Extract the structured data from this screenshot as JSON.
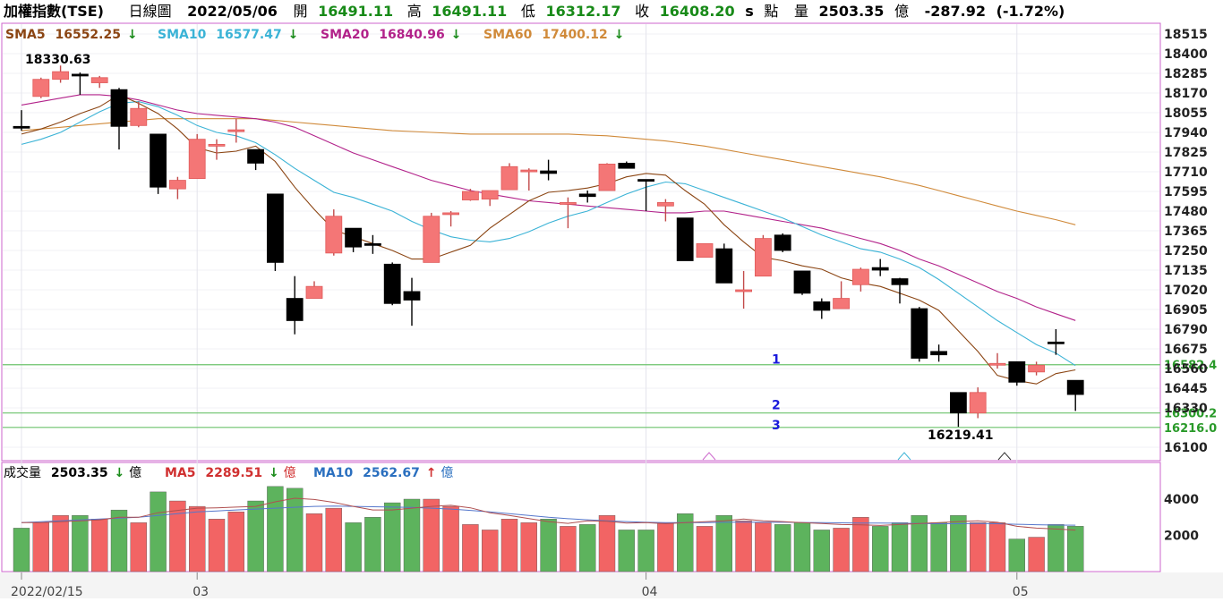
{
  "header": {
    "index_name": "加權指數(TSE)",
    "period": "日線圖",
    "date": "2022/05/06",
    "open_label": "開",
    "open": "16491.11",
    "high_label": "高",
    "high": "16491.11",
    "low_label": "低",
    "low": "16312.17",
    "close_label": "收",
    "close": "16408.20",
    "flag": "s",
    "point_unit": "點",
    "volume_label": "量",
    "volume": "2503.35",
    "volume_unit": "億",
    "change": "-287.92",
    "change_pct": "(-1.72%)"
  },
  "indicators": [
    {
      "label": "SMA5",
      "value": "16552.25",
      "arrow": "↓",
      "color": "#8B4513"
    },
    {
      "label": "SMA10",
      "value": "16577.47",
      "arrow": "↓",
      "color": "#3BB3D6"
    },
    {
      "label": "SMA20",
      "value": "16840.96",
      "arrow": "↓",
      "color": "#B2228A"
    },
    {
      "label": "SMA60",
      "value": "17400.12",
      "arrow": "↓",
      "color": "#D08A3A"
    }
  ],
  "volume_panel": {
    "title": "成交量",
    "value": "2503.35",
    "arrow": "↓",
    "unit": "億",
    "ma5_label": "MA5",
    "ma5": "2289.51",
    "ma5_arrow": "↓",
    "ma5_unit": "億",
    "ma10_label": "MA10",
    "ma10": "2562.67",
    "ma10_arrow": "↑",
    "ma10_unit": "億"
  },
  "annotations": {
    "high_marker": "18330.63",
    "low_marker": "16219.41",
    "lines": [
      {
        "label": "1",
        "value": "16582.4"
      },
      {
        "label": "2",
        "value": "16300.2"
      },
      {
        "label": "3",
        "value": "16216.0"
      }
    ]
  },
  "colors": {
    "up": "#f47676",
    "down": "#000000",
    "vol_up": "#f26464",
    "vol_down": "#5db35d",
    "hline": "#6cc36c",
    "frame": "#cc66cc",
    "ma5": "#8B4513",
    "ma10": "#3BB3D6",
    "ma20": "#B2228A",
    "ma60": "#D08A3A"
  },
  "chart_data": {
    "type": "candlestick",
    "price_ticks": [
      "18515",
      "18400",
      "18285",
      "18170",
      "18055",
      "17940",
      "17825",
      "17710",
      "17595",
      "17480",
      "17365",
      "17250",
      "17135",
      "17020",
      "16905",
      "16790",
      "16675",
      "16560",
      "16445",
      "16330",
      "16100"
    ],
    "volume_ticks": [
      "4000",
      "2000"
    ],
    "date_labels": [
      "2022/02/15",
      "03",
      "04",
      "05"
    ],
    "date_label_index": [
      0,
      9,
      32,
      51
    ],
    "candles": [
      {
        "o": 17975,
        "h": 18070,
        "l": 17950,
        "c": 17965
      },
      {
        "o": 18150,
        "h": 18260,
        "l": 18140,
        "c": 18250
      },
      {
        "o": 18250,
        "h": 18330.63,
        "l": 18230,
        "c": 18295
      },
      {
        "o": 18280,
        "h": 18290,
        "l": 18160,
        "c": 18270
      },
      {
        "o": 18230,
        "h": 18270,
        "l": 18200,
        "c": 18260
      },
      {
        "o": 18190,
        "h": 18200,
        "l": 17840,
        "c": 17975
      },
      {
        "o": 17980,
        "h": 18120,
        "l": 17970,
        "c": 18080
      },
      {
        "o": 17930,
        "h": 17930,
        "l": 17580,
        "c": 17620
      },
      {
        "o": 17610,
        "h": 17680,
        "l": 17550,
        "c": 17660
      },
      {
        "o": 17670,
        "h": 17930,
        "l": 17670,
        "c": 17900
      },
      {
        "o": 17860,
        "h": 17900,
        "l": 17780,
        "c": 17870
      },
      {
        "o": 17950,
        "h": 18020,
        "l": 17880,
        "c": 17955
      },
      {
        "o": 17840,
        "h": 17840,
        "l": 17720,
        "c": 17760
      },
      {
        "o": 17580,
        "h": 17580,
        "l": 17130,
        "c": 17180
      },
      {
        "o": 16970,
        "h": 17100,
        "l": 16760,
        "c": 16840
      },
      {
        "o": 16970,
        "h": 17070,
        "l": 16970,
        "c": 17040
      },
      {
        "o": 17235,
        "h": 17490,
        "l": 17220,
        "c": 17450
      },
      {
        "o": 17380,
        "h": 17380,
        "l": 17240,
        "c": 17270
      },
      {
        "o": 17290,
        "h": 17340,
        "l": 17230,
        "c": 17280
      },
      {
        "o": 17170,
        "h": 17180,
        "l": 16930,
        "c": 16940
      },
      {
        "o": 17010,
        "h": 17090,
        "l": 16810,
        "c": 16960
      },
      {
        "o": 17180,
        "h": 17470,
        "l": 17180,
        "c": 17450
      },
      {
        "o": 17460,
        "h": 17480,
        "l": 17390,
        "c": 17470
      },
      {
        "o": 17545,
        "h": 17610,
        "l": 17540,
        "c": 17595
      },
      {
        "o": 17550,
        "h": 17600,
        "l": 17510,
        "c": 17600
      },
      {
        "o": 17605,
        "h": 17760,
        "l": 17605,
        "c": 17740
      },
      {
        "o": 17720,
        "h": 17730,
        "l": 17600,
        "c": 17720
      },
      {
        "o": 17715,
        "h": 17780,
        "l": 17660,
        "c": 17700
      },
      {
        "o": 17530,
        "h": 17560,
        "l": 17380,
        "c": 17530
      },
      {
        "o": 17580,
        "h": 17600,
        "l": 17530,
        "c": 17565
      },
      {
        "o": 17600,
        "h": 17760,
        "l": 17600,
        "c": 17755
      },
      {
        "o": 17760,
        "h": 17770,
        "l": 17730,
        "c": 17730
      },
      {
        "o": 17665,
        "h": 17665,
        "l": 17480,
        "c": 17655
      },
      {
        "o": 17510,
        "h": 17550,
        "l": 17420,
        "c": 17530
      },
      {
        "o": 17440,
        "h": 17440,
        "l": 17190,
        "c": 17190
      },
      {
        "o": 17210,
        "h": 17290,
        "l": 17210,
        "c": 17290
      },
      {
        "o": 17260,
        "h": 17290,
        "l": 17060,
        "c": 17060
      },
      {
        "o": 17020,
        "h": 17130,
        "l": 16910,
        "c": 17020
      },
      {
        "o": 17100,
        "h": 17340,
        "l": 17100,
        "c": 17320
      },
      {
        "o": 17340,
        "h": 17350,
        "l": 17240,
        "c": 17250
      },
      {
        "o": 17130,
        "h": 17130,
        "l": 16990,
        "c": 17000
      },
      {
        "o": 16950,
        "h": 16970,
        "l": 16850,
        "c": 16900
      },
      {
        "o": 16910,
        "h": 17070,
        "l": 16910,
        "c": 16970
      },
      {
        "o": 17050,
        "h": 17150,
        "l": 17010,
        "c": 17140
      },
      {
        "o": 17150,
        "h": 17200,
        "l": 17100,
        "c": 17135
      },
      {
        "o": 17085,
        "h": 17090,
        "l": 16940,
        "c": 17050
      },
      {
        "o": 16910,
        "h": 16920,
        "l": 16600,
        "c": 16620
      },
      {
        "o": 16660,
        "h": 16700,
        "l": 16600,
        "c": 16640
      },
      {
        "o": 16420,
        "h": 16420,
        "l": 16219.41,
        "c": 16300
      },
      {
        "o": 16300,
        "h": 16450,
        "l": 16270,
        "c": 16420
      },
      {
        "o": 16590,
        "h": 16650,
        "l": 16560,
        "c": 16590
      },
      {
        "o": 16600,
        "h": 16600,
        "l": 16460,
        "c": 16480
      },
      {
        "o": 16540,
        "h": 16600,
        "l": 16520,
        "c": 16580
      },
      {
        "o": 16715,
        "h": 16790,
        "l": 16640,
        "c": 16705
      },
      {
        "o": 16491.11,
        "h": 16491.11,
        "l": 16312.17,
        "c": 16408.2
      }
    ],
    "sma5": [
      17930,
      17960,
      18000,
      18050,
      18090,
      18160,
      18110,
      18050,
      17960,
      17850,
      17820,
      17830,
      17860,
      17770,
      17620,
      17490,
      17370,
      17330,
      17290,
      17250,
      17200,
      17200,
      17240,
      17280,
      17380,
      17460,
      17540,
      17590,
      17600,
      17615,
      17640,
      17680,
      17700,
      17690,
      17600,
      17520,
      17400,
      17300,
      17210,
      17190,
      17160,
      17140,
      17090,
      17060,
      17040,
      17000,
      16960,
      16900,
      16780,
      16660,
      16520,
      16490,
      16470,
      16530,
      16552.25
    ],
    "sma10": [
      17870,
      17900,
      17940,
      18000,
      18060,
      18110,
      18120,
      18090,
      18040,
      17980,
      17940,
      17920,
      17880,
      17810,
      17730,
      17660,
      17590,
      17560,
      17520,
      17480,
      17420,
      17370,
      17330,
      17310,
      17300,
      17320,
      17360,
      17410,
      17450,
      17480,
      17530,
      17580,
      17620,
      17650,
      17640,
      17600,
      17560,
      17520,
      17480,
      17440,
      17390,
      17340,
      17300,
      17260,
      17240,
      17200,
      17150,
      17080,
      17000,
      16920,
      16840,
      16770,
      16700,
      16650,
      16577.47
    ],
    "sma20": [
      18100,
      18120,
      18140,
      18160,
      18160,
      18150,
      18130,
      18100,
      18070,
      18050,
      18040,
      18030,
      18020,
      18000,
      17970,
      17920,
      17870,
      17820,
      17780,
      17740,
      17700,
      17660,
      17630,
      17600,
      17580,
      17560,
      17540,
      17530,
      17520,
      17510,
      17500,
      17490,
      17480,
      17470,
      17470,
      17480,
      17480,
      17460,
      17440,
      17420,
      17400,
      17380,
      17350,
      17320,
      17290,
      17250,
      17200,
      17160,
      17110,
      17060,
      17010,
      16970,
      16920,
      16880,
      16840.96
    ],
    "sma60": [
      17950,
      17960,
      17970,
      17980,
      17990,
      18000,
      18010,
      18020,
      18020,
      18020,
      18020,
      18020,
      18020,
      18010,
      18000,
      17990,
      17980,
      17970,
      17960,
      17950,
      17945,
      17940,
      17935,
      17930,
      17930,
      17930,
      17930,
      17930,
      17930,
      17925,
      17920,
      17910,
      17900,
      17890,
      17875,
      17860,
      17840,
      17820,
      17800,
      17780,
      17760,
      17740,
      17720,
      17700,
      17680,
      17655,
      17630,
      17600,
      17570,
      17540,
      17510,
      17480,
      17455,
      17430,
      17400.12
    ],
    "volume": [
      2400,
      2700,
      3100,
      3100,
      2900,
      3400,
      2700,
      4400,
      3900,
      3600,
      2900,
      3300,
      3900,
      4700,
      4600,
      3200,
      3500,
      2700,
      3000,
      3800,
      4000,
      4000,
      3600,
      2600,
      2300,
      2900,
      2700,
      2900,
      2500,
      2600,
      3100,
      2300,
      2300,
      2700,
      3200,
      2500,
      3100,
      2800,
      2700,
      2600,
      2700,
      2300,
      2400,
      3000,
      2500,
      2700,
      3100,
      2700,
      3100,
      2700,
      2700,
      1800,
      1900,
      2600,
      2503.35
    ],
    "volume_ma5": [
      2700,
      2700,
      2750,
      2800,
      2850,
      3000,
      3000,
      3250,
      3380,
      3500,
      3520,
      3560,
      3600,
      3850,
      4050,
      3980,
      3820,
      3600,
      3400,
      3400,
      3500,
      3600,
      3660,
      3520,
      3250,
      3100,
      2930,
      2760,
      2660,
      2800,
      2780,
      2680,
      2700,
      2640,
      2700,
      2750,
      2800,
      2900,
      2800,
      2760,
      2700,
      2650,
      2600,
      2580,
      2550,
      2600,
      2650,
      2700,
      2760,
      2800,
      2720,
      2500,
      2400,
      2350,
      2289.51
    ],
    "volume_ma10": [
      2700,
      2750,
      2800,
      2850,
      2900,
      2950,
      3000,
      3100,
      3200,
      3300,
      3350,
      3400,
      3450,
      3500,
      3550,
      3600,
      3620,
      3600,
      3580,
      3560,
      3540,
      3500,
      3450,
      3380,
      3300,
      3200,
      3100,
      3000,
      2920,
      2860,
      2800,
      2760,
      2720,
      2700,
      2700,
      2700,
      2720,
      2730,
      2720,
      2720,
      2710,
      2700,
      2690,
      2680,
      2680,
      2670,
      2650,
      2640,
      2640,
      2650,
      2640,
      2610,
      2590,
      2570,
      2562.67
    ]
  }
}
